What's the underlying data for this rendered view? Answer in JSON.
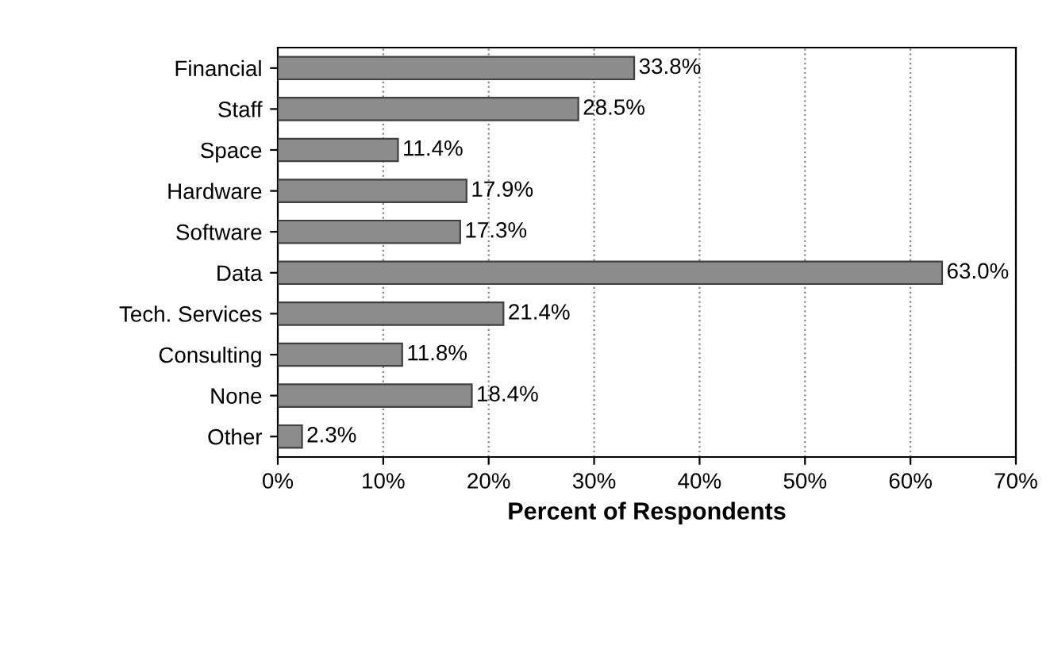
{
  "chart_data": {
    "type": "bar",
    "orientation": "horizontal",
    "xlabel": "Percent of Respondents",
    "categories": [
      "Financial",
      "Staff",
      "Space",
      "Hardware",
      "Software",
      "Data",
      "Tech. Services",
      "Consulting",
      "None",
      "Other"
    ],
    "values": [
      33.8,
      28.5,
      11.4,
      17.9,
      17.3,
      63.0,
      21.4,
      11.8,
      18.4,
      2.3
    ],
    "value_labels": [
      "33.8%",
      "28.5%",
      "11.4%",
      "17.9%",
      "17.3%",
      "63.0%",
      "21.4%",
      "11.8%",
      "18.4%",
      "2.3%"
    ],
    "color": "#8c8c8c",
    "xlim": [
      0,
      70
    ],
    "xticks": [
      {
        "value": 0,
        "label": "0%"
      },
      {
        "value": 10,
        "label": "10%"
      },
      {
        "value": 20,
        "label": "20%"
      },
      {
        "value": 30,
        "label": "30%"
      },
      {
        "value": 40,
        "label": "40%"
      },
      {
        "value": 50,
        "label": "50%"
      },
      {
        "value": 60,
        "label": "60%"
      },
      {
        "value": 70,
        "label": "70%"
      }
    ],
    "grid": "x",
    "legend": false
  }
}
